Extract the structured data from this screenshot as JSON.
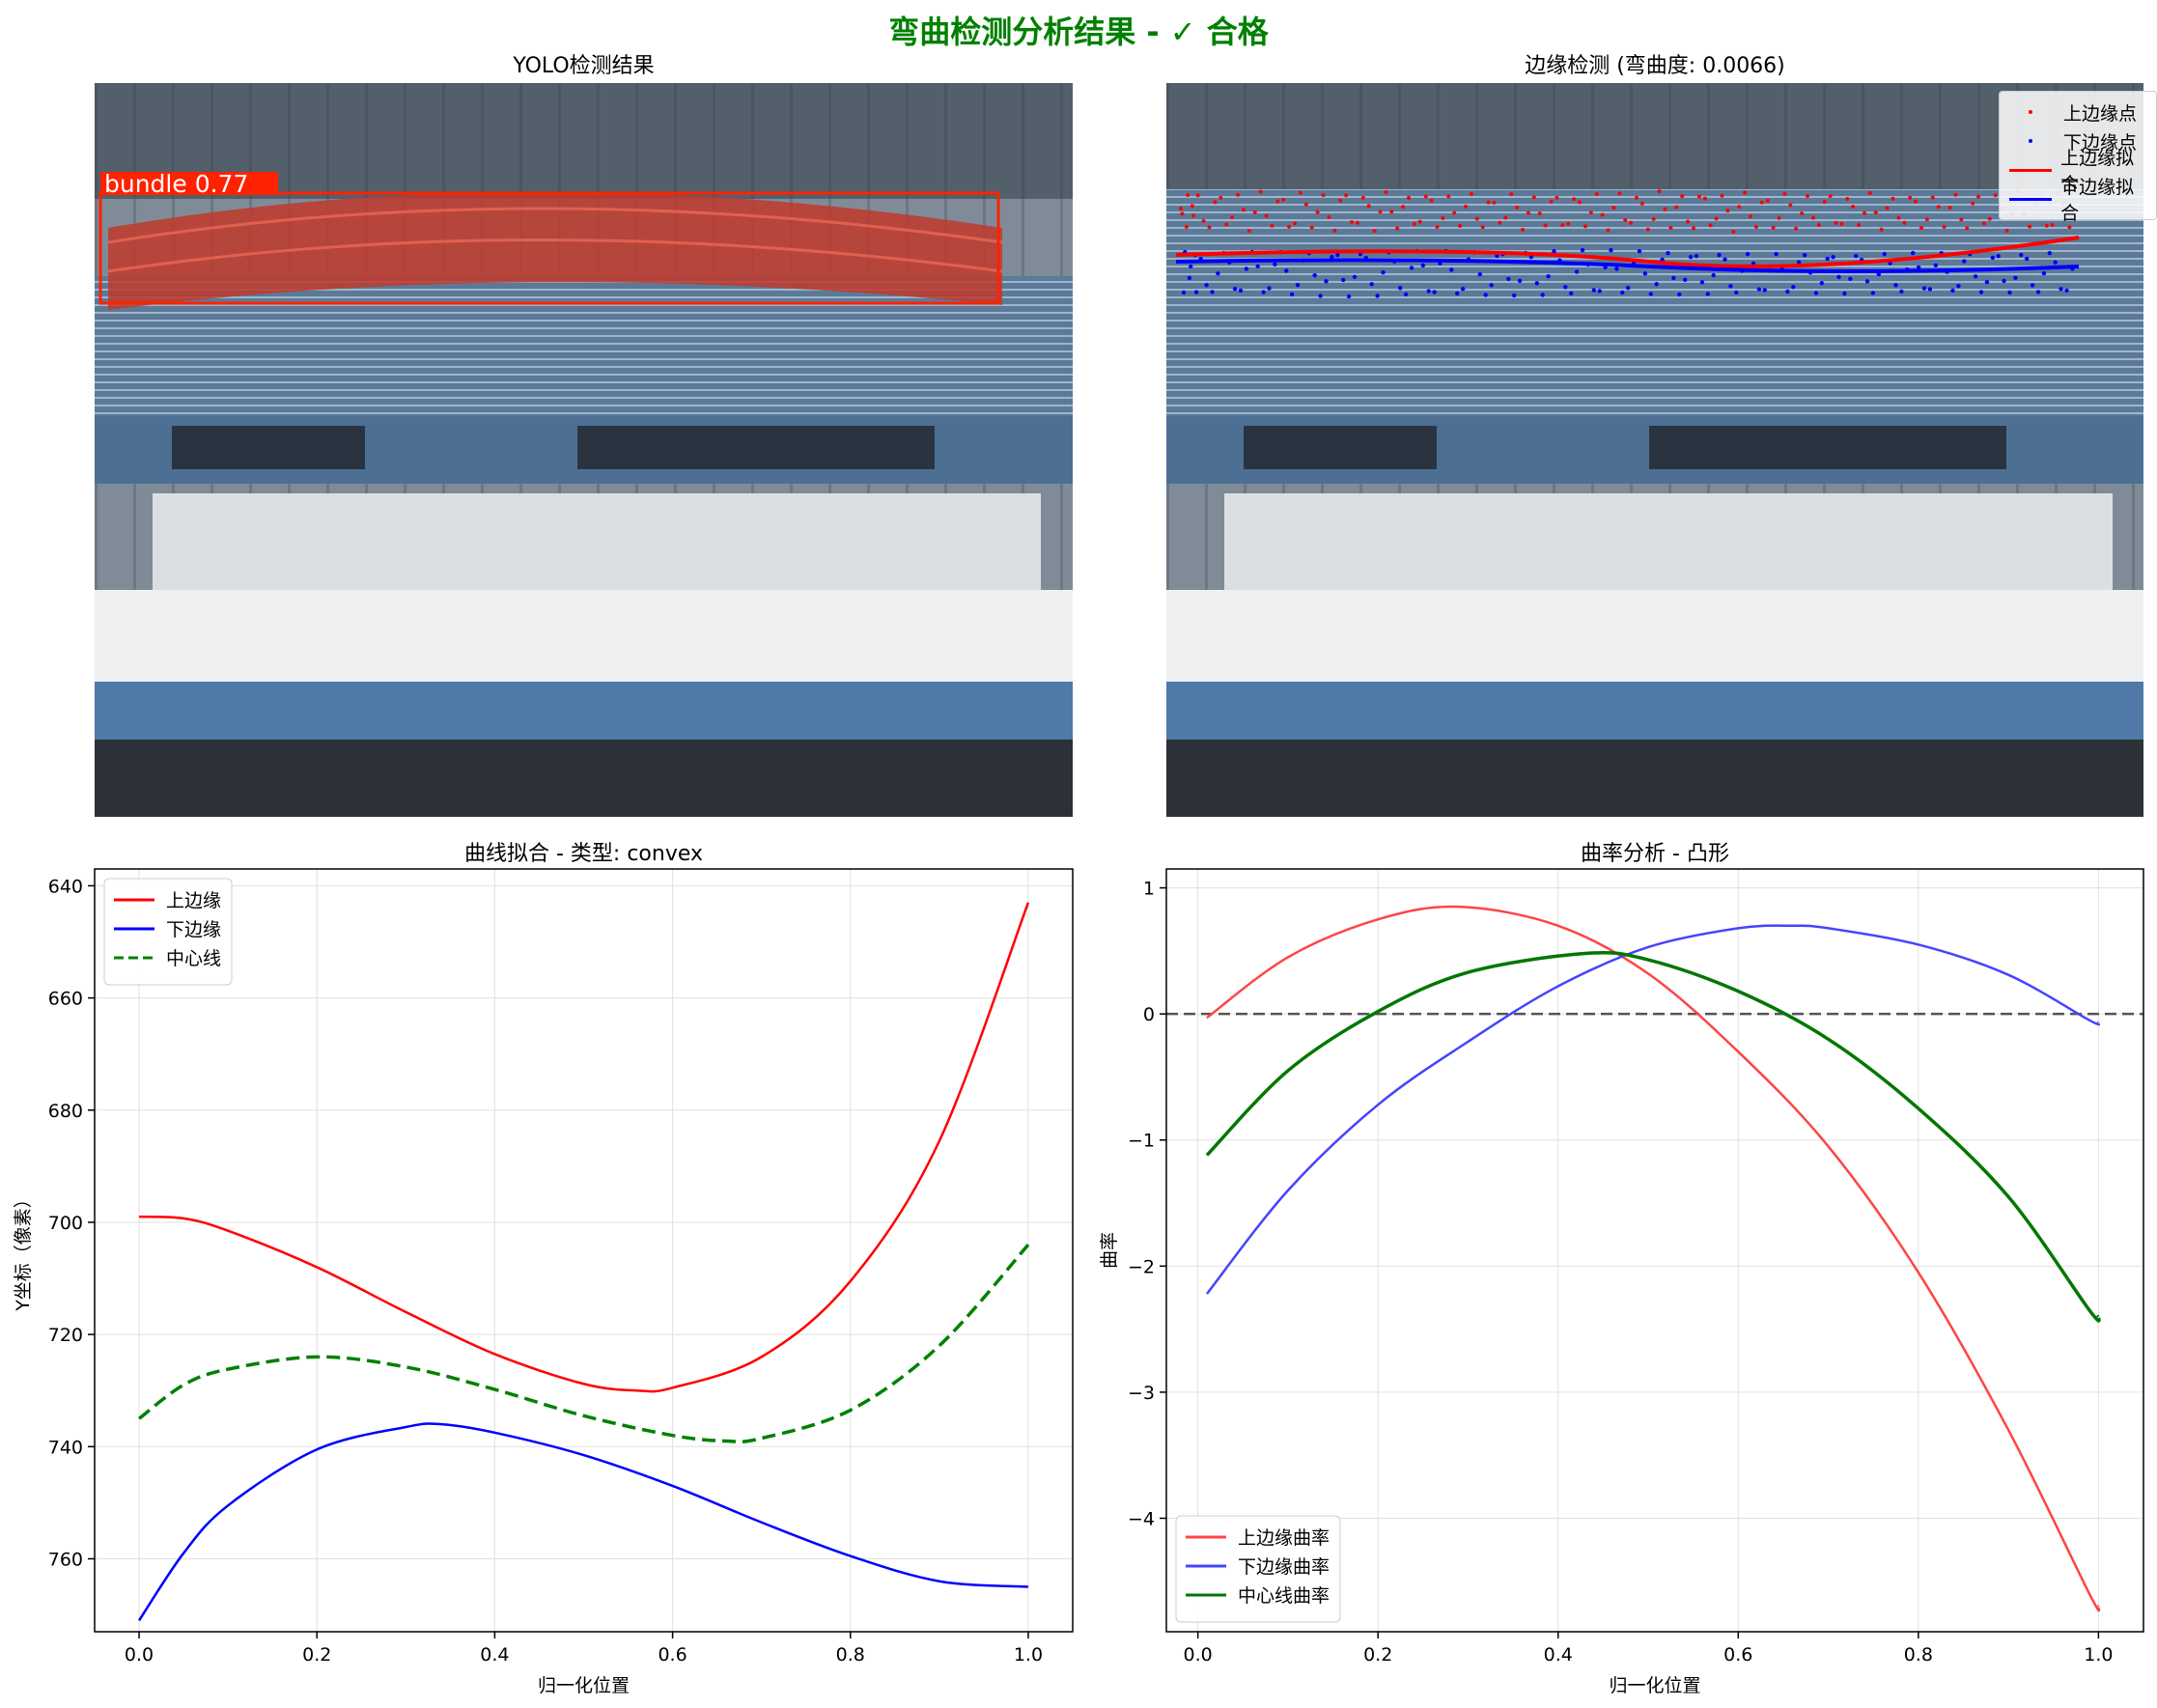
{
  "suptitle": "弯曲检测分析结果 - ✓ 合格",
  "suptitle_color": "#008000",
  "panels": {
    "yolo": {
      "title": "YOLO检测结果",
      "detection_label": "bundle  0.77",
      "box_color": "#ff2200"
    },
    "edges": {
      "title": "边缘检测 (弯曲度: 0.0066)",
      "legend": [
        "上边缘点",
        "下边缘点",
        "上边缘拟合",
        "下边缘拟合"
      ]
    }
  },
  "chart_data": [
    {
      "type": "line",
      "title": "曲线拟合 - 类型: convex",
      "xlabel": "归一化位置",
      "ylabel": "Y坐标（像素）",
      "xlim": [
        -0.05,
        1.05
      ],
      "ylim": [
        773,
        637
      ],
      "y_inverted": true,
      "xticks": [
        0.0,
        0.2,
        0.4,
        0.6,
        0.8,
        1.0
      ],
      "yticks": [
        640,
        660,
        680,
        700,
        720,
        740,
        760
      ],
      "grid": true,
      "legend_position": "upper-left",
      "series": [
        {
          "name": "上边缘",
          "color": "#ff0000",
          "style": "solid",
          "x": [
            0,
            0.05,
            0.1,
            0.2,
            0.3,
            0.4,
            0.5,
            0.56,
            0.6,
            0.7,
            0.8,
            0.9,
            1.0
          ],
          "y": [
            699,
            699.3,
            701.5,
            708,
            716,
            723.5,
            728.8,
            730,
            729.5,
            724,
            710.5,
            685.5,
            643
          ]
        },
        {
          "name": "下边缘",
          "color": "#0000ff",
          "style": "solid",
          "x": [
            0,
            0.05,
            0.1,
            0.2,
            0.3,
            0.34,
            0.4,
            0.5,
            0.6,
            0.7,
            0.8,
            0.9,
            1.0
          ],
          "y": [
            771,
            759,
            750.5,
            740.5,
            736.5,
            736,
            737.5,
            741.5,
            747,
            753.5,
            759.5,
            764,
            765
          ]
        },
        {
          "name": "中心线",
          "color": "#008000",
          "style": "dashed",
          "x": [
            0,
            0.05,
            0.1,
            0.2,
            0.3,
            0.4,
            0.5,
            0.6,
            0.66,
            0.7,
            0.8,
            0.9,
            1.0
          ],
          "y": [
            735,
            729,
            726.2,
            724,
            725.8,
            729.8,
            734.5,
            738,
            739,
            738.5,
            733.5,
            722,
            704
          ]
        }
      ]
    },
    {
      "type": "line",
      "title": "曲率分析 - 凸形",
      "xlabel": "归一化位置",
      "ylabel": "曲率",
      "xlim": [
        -0.035,
        1.05
      ],
      "ylim": [
        -4.9,
        1.15
      ],
      "xticks": [
        0.0,
        0.2,
        0.4,
        0.6,
        0.8,
        1.0
      ],
      "yticks": [
        1,
        0,
        -1,
        -2,
        -3,
        -4
      ],
      "grid": true,
      "reference_line": {
        "y": 0,
        "color": "#555555",
        "style": "dashed"
      },
      "legend_position": "lower-left",
      "series": [
        {
          "name": "上边缘曲率",
          "color": "#ff4444",
          "style": "solid",
          "x": [
            0.01,
            0.1,
            0.2,
            0.29,
            0.4,
            0.5,
            0.6,
            0.7,
            0.8,
            0.9,
            0.99,
            1.0
          ],
          "y": [
            -0.03,
            0.45,
            0.75,
            0.85,
            0.7,
            0.32,
            -0.3,
            -1.05,
            -2.05,
            -3.3,
            -4.6,
            -4.7
          ]
        },
        {
          "name": "下边缘曲率",
          "color": "#4444ff",
          "style": "solid",
          "x": [
            0.01,
            0.1,
            0.2,
            0.3,
            0.4,
            0.5,
            0.6,
            0.66,
            0.7,
            0.8,
            0.9,
            0.99,
            1.0
          ],
          "y": [
            -2.22,
            -1.4,
            -0.72,
            -0.22,
            0.22,
            0.53,
            0.68,
            0.7,
            0.68,
            0.55,
            0.31,
            -0.05,
            -0.07
          ]
        },
        {
          "name": "中心线曲率",
          "color": "#007700",
          "style": "solid",
          "x": [
            0.01,
            0.1,
            0.2,
            0.3,
            0.43,
            0.5,
            0.6,
            0.7,
            0.8,
            0.9,
            0.99,
            1.0
          ],
          "y": [
            -1.12,
            -0.45,
            0.02,
            0.33,
            0.48,
            0.43,
            0.18,
            -0.2,
            -0.75,
            -1.45,
            -2.35,
            -2.4
          ]
        }
      ]
    }
  ]
}
